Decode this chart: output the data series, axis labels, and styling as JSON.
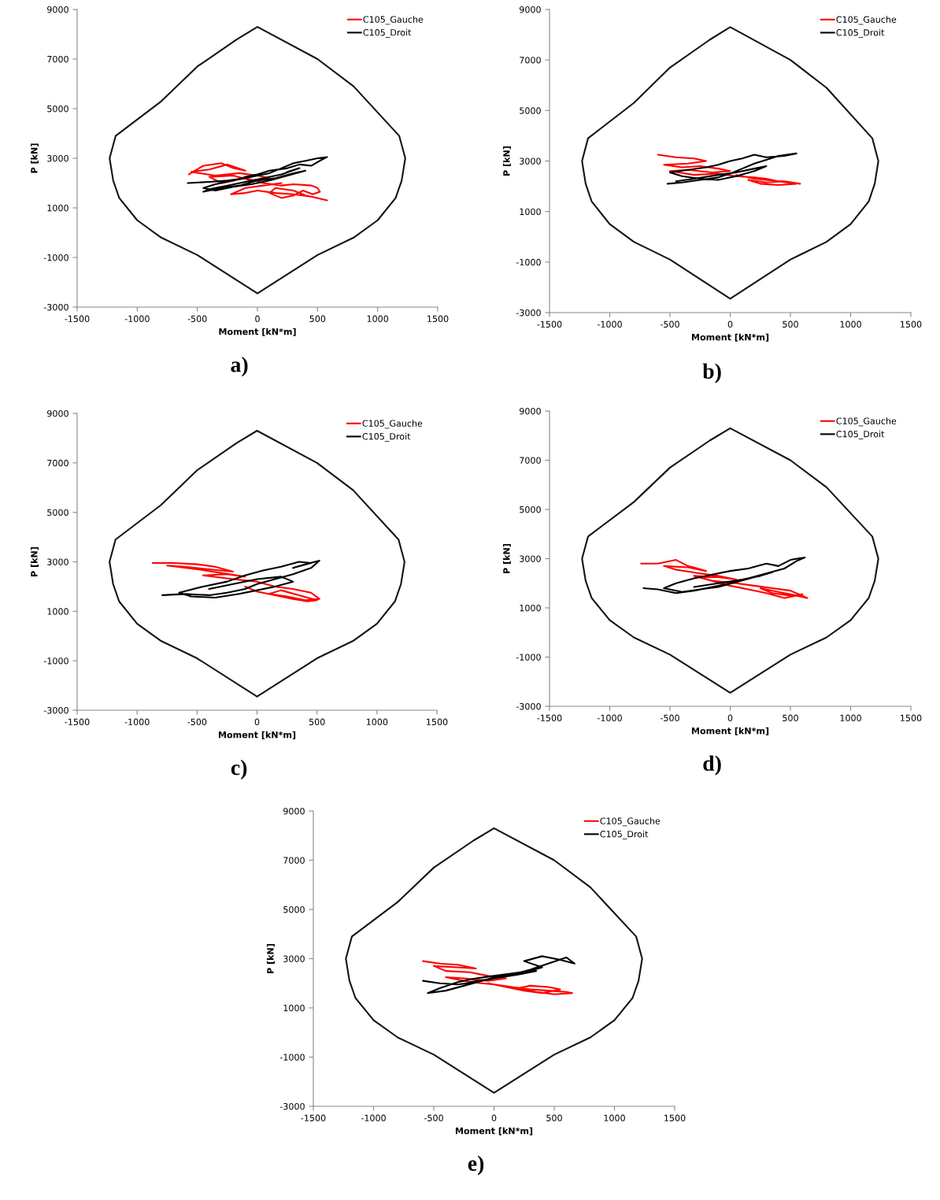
{
  "chart_data": [
    {
      "type": "line",
      "title": "a)",
      "xlabel": "Moment [kN*m]",
      "ylabel": "P [kN]",
      "xlim": [
        -1500,
        1500
      ],
      "ylim": [
        -3000,
        9000
      ],
      "xticks": [
        -1500,
        -1000,
        -500,
        0,
        500,
        1000,
        1500
      ],
      "yticks": [
        -3000,
        -1000,
        1000,
        3000,
        5000,
        7000,
        9000
      ],
      "grid": false,
      "legend": "top right",
      "series": [
        {
          "color": "#141414",
          "x": [
            -1230,
            -1180,
            -800,
            -500,
            -170,
            0,
            500,
            800,
            1180,
            1230,
            null,
            -1230,
            -1200,
            -1150,
            -1000,
            -800,
            -500,
            0,
            500,
            800,
            1000,
            1150,
            1200,
            1230
          ],
          "values": [
            3000,
            3900,
            5300,
            6700,
            7800,
            8300,
            7000,
            5900,
            3900,
            3000,
            null,
            3000,
            2100,
            1400,
            500,
            -200,
            -900,
            -2450,
            -900,
            -200,
            500,
            1400,
            2100,
            3000
          ]
        },
        {
          "name": "C105_Gauche",
          "color": "#ff0000",
          "x": [
            -570,
            -450,
            -300,
            -200,
            -100,
            -250,
            -400,
            -550,
            -350,
            -150,
            0,
            100,
            -50,
            -200,
            -400,
            -300,
            -100,
            50,
            200,
            300,
            450,
            500,
            520,
            460,
            380,
            300,
            200,
            100,
            150,
            300,
            400,
            500,
            580,
            450,
            300,
            150,
            0,
            -100,
            -220,
            -100,
            50,
            200
          ],
          "values": [
            2350,
            2700,
            2800,
            2600,
            2500,
            2750,
            2550,
            2450,
            2300,
            2400,
            2300,
            2200,
            2100,
            2300,
            2250,
            2000,
            2200,
            2000,
            1900,
            1950,
            1900,
            1800,
            1650,
            1550,
            1700,
            1500,
            1400,
            1600,
            1800,
            1700,
            1500,
            1400,
            1300,
            1450,
            1550,
            1600,
            1700,
            1600,
            1550,
            1800,
            1900,
            2000
          ]
        },
        {
          "name": "C105_Droit",
          "color": "#000000",
          "x": [
            -580,
            -400,
            -250,
            -100,
            0,
            100,
            200,
            300,
            400,
            500,
            580,
            520,
            450,
            350,
            250,
            100,
            0,
            -100,
            -200,
            -350,
            -450,
            -350,
            -200,
            -50,
            100,
            250,
            400,
            300,
            150,
            0,
            -150,
            -300,
            -450,
            -400,
            -250,
            -100,
            50,
            200,
            350,
            250
          ],
          "values": [
            2000,
            2050,
            2100,
            2200,
            2300,
            2400,
            2600,
            2800,
            2900,
            3000,
            3050,
            2900,
            2700,
            2750,
            2600,
            2500,
            2350,
            2250,
            2100,
            1950,
            1800,
            1700,
            1850,
            1950,
            2100,
            2300,
            2500,
            2400,
            2200,
            2100,
            1900,
            1800,
            1650,
            1750,
            1900,
            2050,
            2200,
            2350,
            2600,
            2450
          ]
        }
      ]
    },
    {
      "type": "line",
      "title": "b)",
      "xlabel": "Moment [kN*m]",
      "ylabel": "P [kN]",
      "xlim": [
        -1500,
        1500
      ],
      "ylim": [
        -3000,
        9000
      ],
      "xticks": [
        -1500,
        -1000,
        -500,
        0,
        500,
        1000,
        1500
      ],
      "yticks": [
        -3000,
        -1000,
        1000,
        3000,
        5000,
        7000,
        9000
      ],
      "grid": false,
      "legend": "top right",
      "series": [
        {
          "color": "#141414",
          "x": [
            -1230,
            -1180,
            -800,
            -500,
            -170,
            0,
            500,
            800,
            1180,
            1230,
            null,
            -1230,
            -1200,
            -1150,
            -1000,
            -800,
            -500,
            0,
            500,
            800,
            1000,
            1150,
            1200,
            1230
          ],
          "values": [
            3000,
            3900,
            5300,
            6700,
            7800,
            8300,
            7000,
            5900,
            3900,
            3000,
            null,
            3000,
            2100,
            1400,
            500,
            -200,
            -900,
            -2450,
            -900,
            -200,
            500,
            1400,
            2100,
            3000
          ]
        },
        {
          "name": "C105_Gauche",
          "color": "#ff0000",
          "x": [
            -600,
            -450,
            -300,
            -200,
            -350,
            -550,
            -400,
            -250,
            -100,
            0,
            -150,
            -350,
            -500,
            -300,
            -100,
            50,
            200,
            300,
            400,
            500,
            580,
            450,
            300,
            150,
            250,
            400,
            550,
            400,
            200,
            50
          ],
          "values": [
            3250,
            3150,
            3100,
            3000,
            2900,
            2850,
            2750,
            2800,
            2700,
            2600,
            2550,
            2650,
            2600,
            2450,
            2500,
            2400,
            2350,
            2300,
            2200,
            2150,
            2100,
            2200,
            2150,
            2250,
            2100,
            2050,
            2100,
            2200,
            2300,
            2450
          ]
        },
        {
          "name": "C105_Droit",
          "color": "#000000",
          "x": [
            -520,
            -400,
            -250,
            -100,
            0,
            100,
            200,
            300,
            400,
            550,
            450,
            300,
            200,
            100,
            0,
            -100,
            -200,
            -350,
            -500,
            -400,
            -250,
            -100,
            50,
            200,
            300,
            200,
            50,
            -100,
            -300,
            -450
          ],
          "values": [
            2100,
            2150,
            2250,
            2350,
            2500,
            2700,
            2900,
            3050,
            3200,
            3300,
            3200,
            3150,
            3250,
            3100,
            3000,
            2850,
            2750,
            2650,
            2550,
            2400,
            2300,
            2250,
            2400,
            2600,
            2800,
            2700,
            2550,
            2450,
            2300,
            2200
          ]
        }
      ]
    },
    {
      "type": "line",
      "title": "c)",
      "xlabel": "Moment [kN*m]",
      "ylabel": "P [kN]",
      "xlim": [
        -1500,
        1500
      ],
      "ylim": [
        -3000,
        9000
      ],
      "xticks": [
        -1500,
        -1000,
        -500,
        0,
        500,
        1000,
        1500
      ],
      "yticks": [
        -3000,
        -1000,
        1000,
        3000,
        5000,
        7000,
        9000
      ],
      "grid": false,
      "legend": "top right",
      "series": [
        {
          "color": "#141414",
          "x": [
            -1230,
            -1180,
            -800,
            -500,
            -170,
            0,
            500,
            800,
            1180,
            1230,
            null,
            -1230,
            -1200,
            -1150,
            -1000,
            -800,
            -500,
            0,
            500,
            800,
            1000,
            1150,
            1200,
            1230
          ],
          "values": [
            3000,
            3900,
            5300,
            6700,
            7800,
            8300,
            7000,
            5900,
            3900,
            3000,
            null,
            3000,
            2100,
            1400,
            500,
            -200,
            -900,
            -2450,
            -900,
            -200,
            500,
            1400,
            2100,
            3000
          ]
        },
        {
          "name": "C105_Gauche",
          "color": "#ff0000",
          "x": [
            -870,
            -700,
            -500,
            -350,
            -200,
            -400,
            -600,
            -750,
            -500,
            -300,
            -100,
            -250,
            -450,
            -200,
            0,
            150,
            300,
            450,
            520,
            400,
            250,
            100,
            200,
            350,
            500,
            420,
            300,
            150,
            0,
            -100
          ],
          "values": [
            2950,
            2950,
            2900,
            2800,
            2600,
            2700,
            2800,
            2850,
            2700,
            2550,
            2400,
            2500,
            2450,
            2300,
            2200,
            2000,
            1900,
            1750,
            1500,
            1450,
            1600,
            1700,
            1850,
            1650,
            1450,
            1400,
            1500,
            1650,
            1800,
            2000
          ]
        },
        {
          "name": "C105_Droit",
          "color": "#000000",
          "x": [
            -790,
            -600,
            -400,
            -250,
            -100,
            0,
            150,
            300,
            450,
            520,
            400,
            300,
            450,
            350,
            200,
            50,
            -100,
            -250,
            -450,
            -650,
            -550,
            -350,
            -150,
            0,
            150,
            300,
            200,
            0,
            -200,
            -400
          ],
          "values": [
            1650,
            1700,
            1650,
            1750,
            1900,
            2100,
            2300,
            2500,
            2750,
            3050,
            2900,
            2750,
            2950,
            3000,
            2800,
            2650,
            2450,
            2200,
            2000,
            1750,
            1600,
            1550,
            1700,
            1850,
            2000,
            2200,
            2400,
            2300,
            2100,
            1900
          ]
        }
      ]
    },
    {
      "type": "line",
      "title": "d)",
      "xlabel": "Moment [kN*m]",
      "ylabel": "P [kN]",
      "xlim": [
        -1500,
        1500
      ],
      "ylim": [
        -3000,
        9000
      ],
      "xticks": [
        -1500,
        -1000,
        -500,
        0,
        500,
        1000,
        1500
      ],
      "yticks": [
        -3000,
        -1000,
        1000,
        3000,
        5000,
        7000,
        9000
      ],
      "grid": false,
      "legend": "top right",
      "series": [
        {
          "color": "#141414",
          "x": [
            -1230,
            -1180,
            -800,
            -500,
            -170,
            0,
            500,
            800,
            1180,
            1230,
            null,
            -1230,
            -1200,
            -1150,
            -1000,
            -800,
            -500,
            0,
            500,
            800,
            1000,
            1150,
            1200,
            1230
          ],
          "values": [
            3000,
            3900,
            5300,
            6700,
            7800,
            8300,
            7000,
            5900,
            3900,
            3000,
            null,
            3000,
            2100,
            1400,
            500,
            -200,
            -900,
            -2450,
            -900,
            -200,
            500,
            1400,
            2100,
            3000
          ]
        },
        {
          "name": "C105_Gauche",
          "color": "#ff0000",
          "x": [
            -740,
            -600,
            -450,
            -350,
            -200,
            -350,
            -550,
            -450,
            -250,
            -100,
            50,
            -100,
            -300,
            -150,
            50,
            200,
            350,
            500,
            640,
            550,
            400,
            250,
            350,
            500,
            600,
            450,
            300,
            150,
            0,
            -150
          ],
          "values": [
            2800,
            2800,
            2950,
            2700,
            2500,
            2650,
            2700,
            2550,
            2400,
            2300,
            2150,
            2250,
            2300,
            2100,
            2000,
            1900,
            1800,
            1700,
            1400,
            1500,
            1650,
            1800,
            1600,
            1500,
            1550,
            1400,
            1600,
            1750,
            1900,
            2100
          ]
        },
        {
          "name": "C105_Droit",
          "color": "#000000",
          "x": [
            -720,
            -600,
            -450,
            -300,
            -150,
            0,
            150,
            300,
            450,
            550,
            620,
            500,
            400,
            300,
            150,
            0,
            -150,
            -300,
            -450,
            -550,
            -400,
            -250,
            -100,
            50,
            200,
            350,
            250,
            100,
            -100,
            -300
          ],
          "values": [
            1800,
            1750,
            1600,
            1700,
            1850,
            2000,
            2200,
            2400,
            2600,
            2900,
            3050,
            2950,
            2700,
            2800,
            2600,
            2500,
            2350,
            2200,
            2000,
            1800,
            1650,
            1750,
            1850,
            2050,
            2250,
            2450,
            2300,
            2150,
            2000,
            1850
          ]
        }
      ]
    },
    {
      "type": "line",
      "title": "e)",
      "xlabel": "Moment [kN*m]",
      "ylabel": "P [kN]",
      "xlim": [
        -1500,
        1500
      ],
      "ylim": [
        -3000,
        9000
      ],
      "xticks": [
        -1500,
        -1000,
        -500,
        0,
        500,
        1000,
        1500
      ],
      "yticks": [
        -3000,
        -1000,
        1000,
        3000,
        5000,
        7000,
        9000
      ],
      "grid": false,
      "legend": "top right",
      "series": [
        {
          "color": "#141414",
          "x": [
            -1230,
            -1180,
            -800,
            -500,
            -170,
            0,
            500,
            800,
            1180,
            1230,
            null,
            -1230,
            -1200,
            -1150,
            -1000,
            -800,
            -500,
            0,
            500,
            800,
            1000,
            1150,
            1200,
            1230
          ],
          "values": [
            3000,
            3900,
            5300,
            6700,
            7800,
            8300,
            7000,
            5900,
            3900,
            3000,
            null,
            3000,
            2100,
            1400,
            500,
            -200,
            -900,
            -2450,
            -900,
            -200,
            500,
            1400,
            2100,
            3000
          ]
        },
        {
          "name": "C105_Gauche",
          "color": "#ff0000",
          "x": [
            -590,
            -450,
            -300,
            -150,
            -300,
            -500,
            -400,
            -200,
            -50,
            100,
            -50,
            -250,
            -400,
            -200,
            0,
            150,
            300,
            450,
            600,
            650,
            500,
            350,
            200,
            300,
            450,
            550,
            400,
            250,
            100,
            -50
          ],
          "values": [
            2900,
            2800,
            2750,
            2600,
            2650,
            2700,
            2500,
            2450,
            2300,
            2200,
            2100,
            2200,
            2250,
            2050,
            1950,
            1850,
            1750,
            1700,
            1650,
            1600,
            1550,
            1650,
            1800,
            1900,
            1850,
            1750,
            1600,
            1700,
            1850,
            2000
          ]
        },
        {
          "name": "C105_Droit",
          "color": "#000000",
          "x": [
            -590,
            -450,
            -300,
            -150,
            0,
            150,
            300,
            450,
            600,
            670,
            550,
            400,
            250,
            400,
            300,
            150,
            0,
            -150,
            -300,
            -450,
            -550,
            -400,
            -250,
            -100,
            50,
            200,
            350,
            200,
            0,
            -200
          ],
          "values": [
            2100,
            2000,
            1950,
            2050,
            2200,
            2350,
            2550,
            2800,
            3050,
            2800,
            2950,
            3100,
            2900,
            2650,
            2500,
            2400,
            2300,
            2200,
            2050,
            1800,
            1600,
            1700,
            1900,
            2100,
            2300,
            2400,
            2500,
            2350,
            2200,
            2050
          ]
        }
      ]
    }
  ]
}
